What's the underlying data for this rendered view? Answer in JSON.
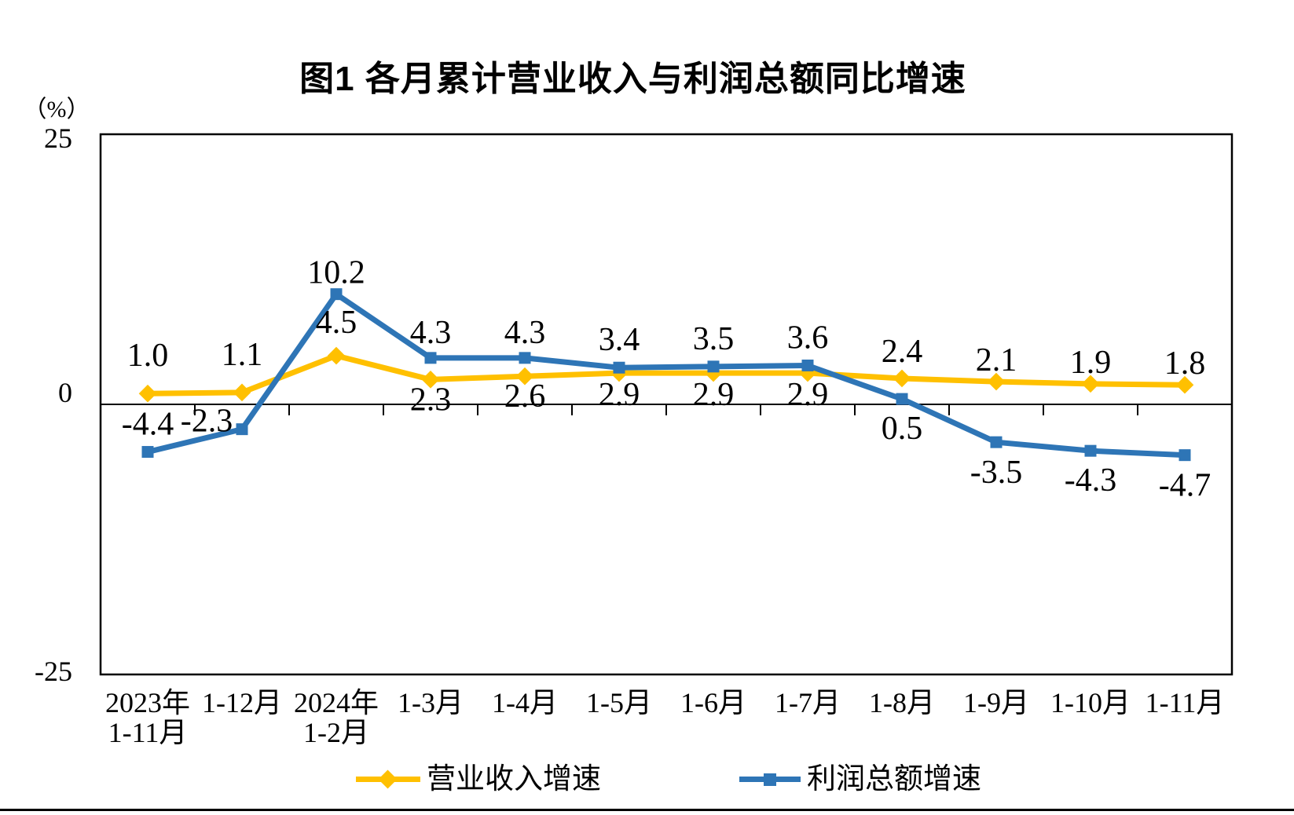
{
  "title": "图1  各月累计营业收入与利润总额同比增速",
  "unit_label": "（%）",
  "colors": {
    "revenue": "#FFC000",
    "profit": "#2E75B6",
    "axis": "#000000",
    "text": "#000000"
  },
  "chart_data": {
    "type": "line",
    "title": "图1 各月累计营业收入与利润总额同比增速",
    "xlabel": "",
    "ylabel": "（%）",
    "ylim": [
      -25,
      25
    ],
    "yticks": [
      25,
      0,
      -25
    ],
    "grid": false,
    "legend_position": "bottom",
    "categories": [
      [
        "2023年",
        "1-11月"
      ],
      [
        "1-12月"
      ],
      [
        "2024年",
        "1-2月"
      ],
      [
        "1-3月"
      ],
      [
        "1-4月"
      ],
      [
        "1-5月"
      ],
      [
        "1-6月"
      ],
      [
        "1-7月"
      ],
      [
        "1-8月"
      ],
      [
        "1-9月"
      ],
      [
        "1-10月"
      ],
      [
        "1-11月"
      ]
    ],
    "series": [
      {
        "name": "营业收入增速",
        "color": "#FFC000",
        "marker": "diamond",
        "values": [
          1.0,
          1.1,
          4.5,
          2.3,
          2.6,
          2.9,
          2.9,
          2.9,
          2.4,
          2.1,
          1.9,
          1.8
        ],
        "labels": [
          "1.0",
          "1.1",
          "4.5",
          "2.3",
          "2.6",
          "2.9",
          "2.9",
          "2.9",
          "2.4",
          "2.1",
          "1.9",
          "1.8"
        ],
        "label_dy": [
          -49,
          -49,
          -43,
          25,
          25,
          27,
          27,
          27,
          -35,
          -28,
          -28,
          -28
        ],
        "label_dx": [
          0,
          0,
          0,
          0,
          0,
          0,
          0,
          0,
          0,
          0,
          0,
          0
        ]
      },
      {
        "name": "利润总额增速",
        "color": "#2E75B6",
        "marker": "square",
        "values": [
          -4.4,
          -2.3,
          10.2,
          4.3,
          4.3,
          3.4,
          3.5,
          3.6,
          0.5,
          -3.5,
          -4.3,
          -4.7
        ],
        "labels": [
          "-4.4",
          "-2.3",
          "10.2",
          "4.3",
          "4.3",
          "3.4",
          "3.5",
          "3.6",
          "0.5",
          "-3.5",
          "-4.3",
          "-4.7"
        ],
        "label_dy": [
          -36,
          -11,
          -28,
          -33,
          -33,
          -36,
          -36,
          -36,
          37,
          38,
          37,
          38
        ],
        "label_dx": [
          0,
          -45,
          0,
          0,
          0,
          0,
          0,
          0,
          0,
          0,
          0,
          0
        ]
      }
    ]
  }
}
